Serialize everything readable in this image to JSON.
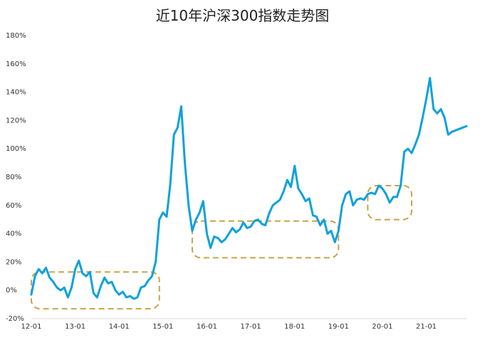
{
  "chart_data": {
    "type": "line",
    "title": "近10年沪深300指数走势图",
    "xlabel": "",
    "ylabel": "",
    "ylim": [
      -20,
      180
    ],
    "ytick_values": [
      -20,
      0,
      20,
      40,
      60,
      80,
      100,
      120,
      140,
      160,
      180
    ],
    "yticks": [
      "-20%",
      "0%",
      "20%",
      "40%",
      "60%",
      "80%",
      "100%",
      "120%",
      "140%",
      "160%",
      "180%"
    ],
    "xlim": [
      "2012-01",
      "2021-12"
    ],
    "xticks": [
      {
        "date": "2012-01",
        "label": "12-01"
      },
      {
        "date": "2013-01",
        "label": "13-01"
      },
      {
        "date": "2014-01",
        "label": "14-01"
      },
      {
        "date": "2015-01",
        "label": "15-01"
      },
      {
        "date": "2016-01",
        "label": "16-01"
      },
      {
        "date": "2017-01",
        "label": "17-01"
      },
      {
        "date": "2018-01",
        "label": "18-01"
      },
      {
        "date": "2019-01",
        "label": "19-01"
      },
      {
        "date": "2020-01",
        "label": "20-01"
      },
      {
        "date": "2021-01",
        "label": "21-01"
      }
    ],
    "grid": false,
    "legend": "none",
    "line_color": "#0ea1dc",
    "box_color": "#c9a24a",
    "series": [
      {
        "values": [
          [
            "2012-01",
            -3
          ],
          [
            "2012-02",
            10
          ],
          [
            "2012-03",
            15
          ],
          [
            "2012-04",
            12
          ],
          [
            "2012-05",
            16
          ],
          [
            "2012-06",
            9
          ],
          [
            "2012-07",
            6
          ],
          [
            "2012-08",
            2
          ],
          [
            "2012-09",
            0
          ],
          [
            "2012-10",
            2
          ],
          [
            "2012-11",
            -5
          ],
          [
            "2012-12",
            2
          ],
          [
            "2013-01",
            15
          ],
          [
            "2013-02",
            21
          ],
          [
            "2013-03",
            12
          ],
          [
            "2013-04",
            10
          ],
          [
            "2013-05",
            13
          ],
          [
            "2013-06",
            -2
          ],
          [
            "2013-07",
            -5
          ],
          [
            "2013-08",
            3
          ],
          [
            "2013-09",
            9
          ],
          [
            "2013-10",
            5
          ],
          [
            "2013-11",
            6
          ],
          [
            "2013-12",
            0
          ],
          [
            "2014-01",
            -3
          ],
          [
            "2014-02",
            -1
          ],
          [
            "2014-03",
            -5
          ],
          [
            "2014-04",
            -4
          ],
          [
            "2014-05",
            -6
          ],
          [
            "2014-06",
            -5
          ],
          [
            "2014-07",
            2
          ],
          [
            "2014-08",
            3
          ],
          [
            "2014-09",
            7
          ],
          [
            "2014-10",
            10
          ],
          [
            "2014-11",
            20
          ],
          [
            "2014-12",
            50
          ],
          [
            "2015-01",
            55
          ],
          [
            "2015-02",
            52
          ],
          [
            "2015-03",
            75
          ],
          [
            "2015-04",
            110
          ],
          [
            "2015-05",
            115
          ],
          [
            "2015-06",
            130
          ],
          [
            "2015-07",
            90
          ],
          [
            "2015-08",
            60
          ],
          [
            "2015-09",
            42
          ],
          [
            "2015-10",
            50
          ],
          [
            "2015-11",
            55
          ],
          [
            "2015-12",
            63
          ],
          [
            "2016-01",
            40
          ],
          [
            "2016-02",
            30
          ],
          [
            "2016-03",
            38
          ],
          [
            "2016-04",
            37
          ],
          [
            "2016-05",
            34
          ],
          [
            "2016-06",
            36
          ],
          [
            "2016-07",
            40
          ],
          [
            "2016-08",
            44
          ],
          [
            "2016-09",
            41
          ],
          [
            "2016-10",
            43
          ],
          [
            "2016-11",
            48
          ],
          [
            "2016-12",
            44
          ],
          [
            "2017-01",
            45
          ],
          [
            "2017-02",
            49
          ],
          [
            "2017-03",
            50
          ],
          [
            "2017-04",
            47
          ],
          [
            "2017-05",
            46
          ],
          [
            "2017-06",
            54
          ],
          [
            "2017-07",
            60
          ],
          [
            "2017-08",
            62
          ],
          [
            "2017-09",
            64
          ],
          [
            "2017-10",
            70
          ],
          [
            "2017-11",
            78
          ],
          [
            "2017-12",
            73
          ],
          [
            "2018-01",
            88
          ],
          [
            "2018-02",
            72
          ],
          [
            "2018-03",
            68
          ],
          [
            "2018-04",
            63
          ],
          [
            "2018-05",
            65
          ],
          [
            "2018-06",
            53
          ],
          [
            "2018-07",
            52
          ],
          [
            "2018-08",
            46
          ],
          [
            "2018-09",
            50
          ],
          [
            "2018-10",
            40
          ],
          [
            "2018-11",
            42
          ],
          [
            "2018-12",
            34
          ],
          [
            "2019-01",
            42
          ],
          [
            "2019-02",
            60
          ],
          [
            "2019-03",
            68
          ],
          [
            "2019-04",
            70
          ],
          [
            "2019-05",
            60
          ],
          [
            "2019-06",
            64
          ],
          [
            "2019-07",
            65
          ],
          [
            "2019-08",
            64
          ],
          [
            "2019-09",
            68
          ],
          [
            "2019-10",
            69
          ],
          [
            "2019-11",
            68
          ],
          [
            "2019-12",
            74
          ],
          [
            "2020-01",
            72
          ],
          [
            "2020-02",
            68
          ],
          [
            "2020-03",
            62
          ],
          [
            "2020-04",
            66
          ],
          [
            "2020-05",
            66
          ],
          [
            "2020-06",
            74
          ],
          [
            "2020-07",
            98
          ],
          [
            "2020-08",
            100
          ],
          [
            "2020-09",
            97
          ],
          [
            "2020-10",
            103
          ],
          [
            "2020-11",
            110
          ],
          [
            "2020-12",
            122
          ],
          [
            "2021-01",
            135
          ],
          [
            "2021-02",
            150
          ],
          [
            "2021-03",
            128
          ],
          [
            "2021-04",
            125
          ],
          [
            "2021-05",
            128
          ],
          [
            "2021-06",
            122
          ],
          [
            "2021-07",
            110
          ],
          [
            "2021-08",
            112
          ],
          [
            "2021-09",
            113
          ],
          [
            "2021-10",
            114
          ],
          [
            "2021-11",
            115
          ],
          [
            "2021-12",
            116
          ]
        ]
      }
    ],
    "highlight_ranges": [
      {
        "x_start": "2012-01",
        "x_end": "2014-12",
        "y_low": -13,
        "y_high": 13
      },
      {
        "x_start": "2015-09",
        "x_end": "2019-01",
        "y_low": 23,
        "y_high": 49
      },
      {
        "x_start": "2019-09",
        "x_end": "2020-09",
        "y_low": 50,
        "y_high": 74
      }
    ]
  }
}
